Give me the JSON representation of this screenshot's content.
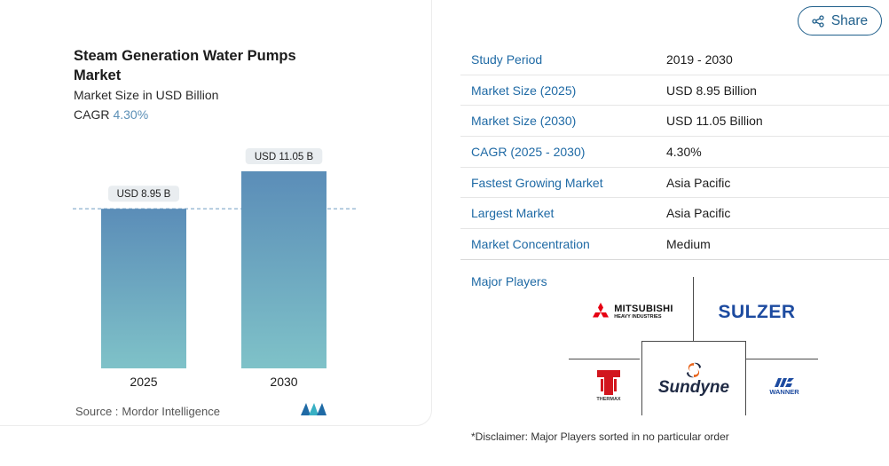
{
  "share": {
    "label": "Share"
  },
  "chart": {
    "title": "Steam Generation Water Pumps Market",
    "subtitle": "Market Size in USD Billion",
    "cagr_label": "CAGR",
    "cagr_value": "4.30%",
    "source_label": "Source :",
    "source_name": "Mordor Intelligence"
  },
  "chart_data": {
    "type": "bar",
    "categories": [
      "2025",
      "2030"
    ],
    "values": [
      8.95,
      11.05
    ],
    "data_labels": [
      "USD 8.95 B",
      "USD 11.05 B"
    ],
    "title": "Steam Generation Water Pumps Market",
    "subtitle": "Market Size in USD Billion",
    "reference_line_value": 8.95,
    "grid": false,
    "colors": {
      "bar_top": "#5b8db8",
      "bar_bottom": "#7fc2c8",
      "ref_line": "#7ea6c9"
    }
  },
  "facts": [
    {
      "label": "Study Period",
      "value": "2019 - 2030"
    },
    {
      "label": "Market Size (2025)",
      "value": "USD 8.95 Billion"
    },
    {
      "label": "Market Size (2030)",
      "value": "USD 11.05 Billion"
    },
    {
      "label": "CAGR (2025 - 2030)",
      "value": "4.30%"
    },
    {
      "label": "Fastest Growing Market",
      "value": "Asia Pacific"
    },
    {
      "label": "Largest Market",
      "value": "Asia Pacific"
    },
    {
      "label": "Market Concentration",
      "value": "Medium"
    }
  ],
  "players": {
    "label": "Major Players",
    "logos": [
      {
        "name": "MITSUBISHI",
        "sub": "HEAVY INDUSTRIES",
        "color": "#e60012"
      },
      {
        "name": "SULZER",
        "color": "#1d4ba0"
      },
      {
        "name": "THERMAX",
        "color": "#d2161e"
      },
      {
        "name": "Sundyne",
        "color": "#1f2a44",
        "accent": "#e8641b"
      },
      {
        "name": "WANNER",
        "color": "#1d4ba0"
      }
    ]
  },
  "disclaimer": "*Disclaimer: Major Players sorted in no particular order"
}
